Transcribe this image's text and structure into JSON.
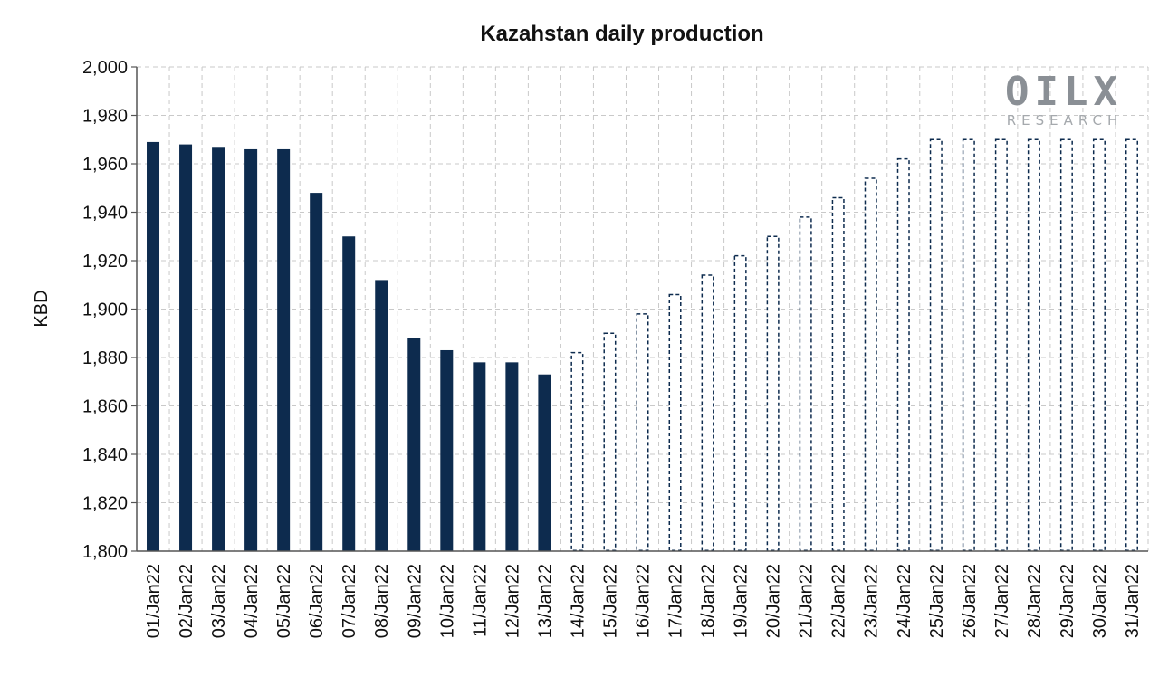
{
  "chart_data": {
    "type": "bar",
    "title": "Kazahstan daily production",
    "ylabel": "KBD",
    "xlabel": "",
    "ylim": [
      1800,
      2000
    ],
    "yticks": [
      1800,
      1820,
      1840,
      1860,
      1880,
      1900,
      1920,
      1940,
      1960,
      1980,
      2000
    ],
    "ytick_labels": [
      "1,800",
      "1,820",
      "1,840",
      "1,860",
      "1,880",
      "1,900",
      "1,920",
      "1,940",
      "1,960",
      "1,980",
      "2,000"
    ],
    "grid": true,
    "categories": [
      "01/Jan22",
      "02/Jan22",
      "03/Jan22",
      "04/Jan22",
      "05/Jan22",
      "06/Jan22",
      "07/Jan22",
      "08/Jan22",
      "09/Jan22",
      "10/Jan22",
      "11/Jan22",
      "12/Jan22",
      "13/Jan22",
      "14/Jan22",
      "15/Jan22",
      "16/Jan22",
      "17/Jan22",
      "18/Jan22",
      "19/Jan22",
      "20/Jan22",
      "21/Jan22",
      "22/Jan22",
      "23/Jan22",
      "24/Jan22",
      "25/Jan22",
      "26/Jan22",
      "27/Jan22",
      "28/Jan22",
      "29/Jan22",
      "30/Jan22",
      "31/Jan22"
    ],
    "series": [
      {
        "style": "solid",
        "color": "#0d2b4e",
        "values": [
          1969,
          1968,
          1967,
          1966,
          1966,
          1948,
          1930,
          1912,
          1888,
          1883,
          1878,
          1878,
          1873,
          null,
          null,
          null,
          null,
          null,
          null,
          null,
          null,
          null,
          null,
          null,
          null,
          null,
          null,
          null,
          null,
          null,
          null
        ]
      },
      {
        "style": "dashed-outline",
        "color": "#0d2b4e",
        "values": [
          null,
          null,
          null,
          null,
          null,
          null,
          null,
          null,
          null,
          null,
          null,
          null,
          null,
          1882,
          1890,
          1898,
          1906,
          1914,
          1922,
          1930,
          1938,
          1946,
          1954,
          1962,
          1970,
          1970,
          1970,
          1970,
          1970,
          1970,
          1970
        ]
      }
    ]
  },
  "logo": {
    "name": "OILX",
    "subtitle": "RESEARCH"
  }
}
